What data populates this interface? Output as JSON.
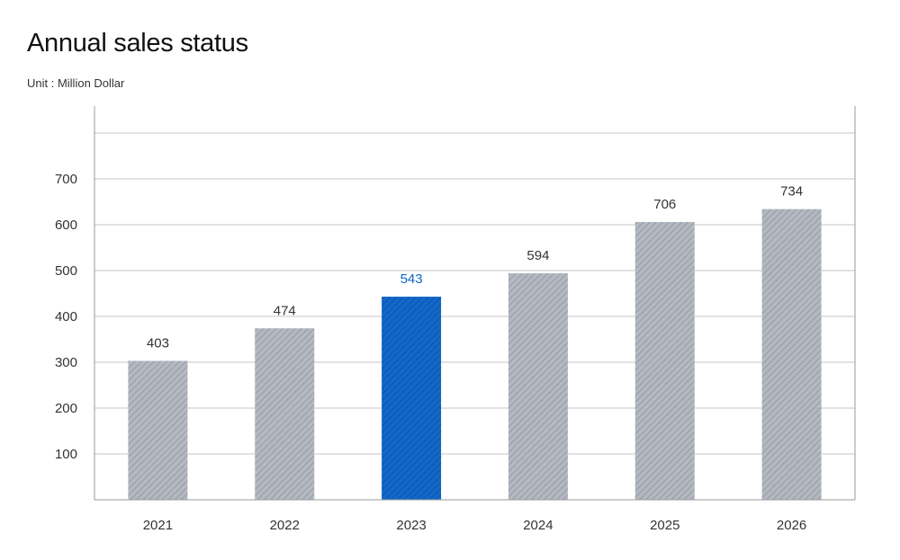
{
  "page": {
    "title": "Annual sales status",
    "subtitle": "Unit : Million Dollar"
  },
  "colors": {
    "bar": "#a9aeb8",
    "bar_highlight": "#0d5fbf",
    "label_highlight": "#0d67c4",
    "grid": "#c4c4c4",
    "axis": "#9a9a9a"
  },
  "chart_data": {
    "type": "bar",
    "title": "Annual sales status",
    "subtitle": "Unit : Million Dollar",
    "categories": [
      "2021",
      "2022",
      "2023",
      "2024",
      "2025",
      "2026"
    ],
    "values": [
      403,
      474,
      543,
      594,
      706,
      734
    ],
    "data_labels": [
      "403",
      "474",
      "543",
      "594",
      "706",
      "734"
    ],
    "highlight_category": "2023",
    "bar_fill": "diagonal-hatch",
    "y_ticks": [
      100,
      200,
      300,
      400,
      500,
      600,
      700
    ],
    "ylim": [
      0,
      800
    ],
    "grid": true,
    "legend": false
  }
}
